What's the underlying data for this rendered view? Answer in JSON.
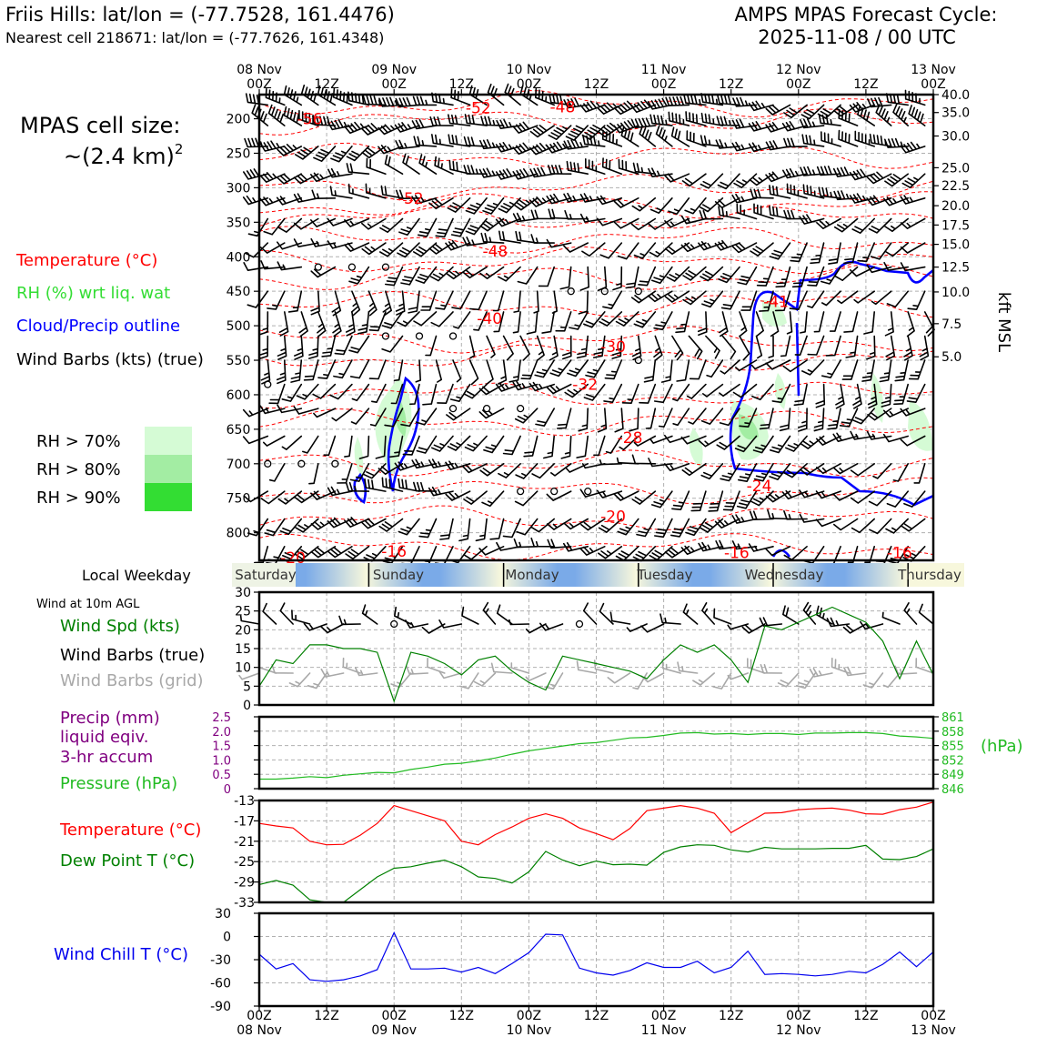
{
  "header": {
    "location_title": "Friis Hills: lat/lon = (-77.7528, 161.4476)",
    "nearest_cell": "Nearest cell 218671: lat/lon = (-77.7626, 161.4348)",
    "cycle_title": "AMPS MPAS Forecast Cycle:",
    "cycle_value": "2025-11-08 / 00 UTC"
  },
  "sidebar": {
    "cell_size_title": "MPAS cell size:",
    "cell_size_value": "~(2.4 km)",
    "cell_size_exp": "2",
    "legend": {
      "temperature": "Temperature (°C)",
      "rh": "RH (%) wrt liq. wat",
      "cloud": "Cloud/Precip outline",
      "wind": "Wind Barbs (kts) (true)"
    },
    "rh_levels": [
      {
        "label": "RH > 70%",
        "color": "#d5fbd5"
      },
      {
        "label": "RH > 80%",
        "color": "#a3eda3"
      },
      {
        "label": "RH > 90%",
        "color": "#33dd33"
      }
    ],
    "weekday_label": "Local Weekday",
    "wind10_title": "Wind at 10m AGL",
    "wind_spd_label": "Wind Spd (kts)",
    "wind_barbs_true": "Wind Barbs (true)",
    "wind_barbs_grid": "Wind Barbs (grid)",
    "precip_label_1": "Precip (mm)",
    "precip_label_2": "liquid eqiv.",
    "precip_label_3": "3-hr accum",
    "pressure_label": "Pressure (hPa)",
    "temp_label": "Temperature (°C)",
    "dew_label": "Dew Point T (°C)",
    "windchill_label": "Wind Chill T (°C)"
  },
  "colors": {
    "temperature": "#ff0000",
    "rh_label": "#33dd33",
    "cloud": "#0000ff",
    "wind_speed": "#008000",
    "wind_grid": "#a8a8a8",
    "precip": "#800080",
    "pressure": "#22bb22",
    "dewpoint": "#008000",
    "windchill": "#0000ee"
  },
  "chart_data": [
    {
      "type": "cross-section",
      "name": "upper",
      "x": {
        "ticks": [
          0,
          12,
          24,
          36,
          48,
          60,
          72,
          84,
          96,
          108,
          120
        ],
        "top_labels": [
          [
            "08 Nov",
            "00Z"
          ],
          [
            "",
            "12Z"
          ],
          [
            "09 Nov",
            "00Z"
          ],
          [
            "",
            "12Z"
          ],
          [
            "10 Nov",
            "00Z"
          ],
          [
            "",
            "12Z"
          ],
          [
            "11 Nov",
            "00Z"
          ],
          [
            "",
            "12Z"
          ],
          [
            "12 Nov",
            "00Z"
          ],
          [
            "",
            "12Z"
          ],
          [
            "13 Nov",
            "00Z"
          ]
        ],
        "range": [
          0,
          120
        ]
      },
      "left_axis": {
        "ticks": [
          200,
          250,
          300,
          350,
          400,
          450,
          500,
          550,
          600,
          650,
          700,
          750,
          800
        ],
        "range": [
          165,
          840
        ]
      },
      "right_axis": {
        "label": "kft MSL",
        "ticks": [
          {
            "p": 165,
            "label": "40.0"
          },
          {
            "p": 191,
            "label": "35.0"
          },
          {
            "p": 225,
            "label": "30.0"
          },
          {
            "p": 271,
            "label": "25.0"
          },
          {
            "p": 297,
            "label": "22.5"
          },
          {
            "p": 326,
            "label": "20.0"
          },
          {
            "p": 354,
            "label": "17.5"
          },
          {
            "p": 382,
            "label": "15.0"
          },
          {
            "p": 415,
            "label": "12.5"
          },
          {
            "p": 451,
            "label": "10.0"
          },
          {
            "p": 497,
            "label": "7.5"
          },
          {
            "p": 545,
            "label": "5.0"
          }
        ]
      },
      "temperature_labels": [
        {
          "t": 9,
          "p": 200,
          "v": "-56"
        },
        {
          "t": 39,
          "p": 184,
          "v": "-52"
        },
        {
          "t": 54,
          "p": 183,
          "v": "-48"
        },
        {
          "t": 27,
          "p": 315,
          "v": "-52"
        },
        {
          "t": 42,
          "p": 392,
          "v": "-48"
        },
        {
          "t": 41,
          "p": 489,
          "v": "-40"
        },
        {
          "t": 63,
          "p": 530,
          "v": "-30"
        },
        {
          "t": 58,
          "p": 585,
          "v": "-32"
        },
        {
          "t": 66,
          "p": 662,
          "v": "-28"
        },
        {
          "t": 92,
          "p": 465,
          "v": "-41"
        },
        {
          "t": 89,
          "p": 732,
          "v": "-24"
        },
        {
          "t": 63,
          "p": 776,
          "v": "-20"
        },
        {
          "t": 6,
          "p": 836,
          "v": "-20"
        },
        {
          "t": 24,
          "p": 827,
          "v": "-16"
        },
        {
          "t": 85,
          "p": 829,
          "v": "-16"
        },
        {
          "t": 114,
          "p": 829,
          "v": "-16"
        }
      ]
    },
    {
      "type": "weekday-band",
      "days": [
        "Saturday",
        "Sunday",
        "Monday",
        "Tuesday",
        "Wednesday",
        "Thursday"
      ],
      "boundaries": [
        6.6,
        18.6,
        30.6,
        42.6,
        54.6,
        66.6,
        78.6,
        90.6,
        102.6,
        114.6
      ]
    },
    {
      "type": "line",
      "name": "wind10",
      "ylim": [
        0,
        30
      ],
      "yticks": [
        0,
        5,
        10,
        15,
        20,
        25,
        30
      ],
      "series": [
        {
          "key": "wind_speed",
          "x": [
            0,
            3,
            6,
            9,
            12,
            15,
            18,
            21,
            24,
            27,
            30,
            33,
            36,
            39,
            42,
            45,
            48,
            51,
            54,
            57,
            60,
            63,
            66,
            69,
            72,
            75,
            78,
            81,
            84,
            87,
            90,
            93,
            96,
            99,
            102,
            105,
            108,
            111,
            114,
            117,
            120
          ],
          "values": [
            5,
            12,
            11,
            16,
            16,
            15,
            15,
            14,
            1,
            14,
            13,
            11,
            8,
            12,
            13,
            9,
            6,
            4,
            13,
            12,
            11,
            10,
            9,
            7,
            12,
            16,
            14,
            16,
            12,
            6,
            21,
            20,
            22,
            24,
            26,
            24,
            22,
            17,
            7,
            17,
            8
          ]
        }
      ]
    },
    {
      "type": "line",
      "name": "precip-pressure",
      "ylim": [
        0,
        2.5
      ],
      "yticks": [
        0,
        0.5,
        1.0,
        1.5,
        2.0,
        2.5
      ],
      "right_axis": {
        "label": "(hPa)",
        "ticks": [
          846,
          849,
          852,
          855,
          858,
          861
        ],
        "range": [
          846,
          861
        ]
      },
      "series": [
        {
          "key": "pressure",
          "x": [
            0,
            3,
            6,
            9,
            12,
            15,
            18,
            21,
            24,
            27,
            30,
            33,
            36,
            39,
            42,
            45,
            48,
            51,
            54,
            57,
            60,
            63,
            66,
            69,
            72,
            75,
            78,
            81,
            84,
            87,
            90,
            93,
            96,
            99,
            102,
            105,
            108,
            111,
            114,
            117,
            120
          ],
          "values": [
            848.0,
            848.0,
            848.2,
            848.5,
            848.3,
            848.8,
            849.1,
            849.4,
            849.3,
            850.0,
            850.5,
            851.1,
            851.3,
            851.8,
            852.4,
            853.2,
            853.9,
            854.4,
            854.9,
            855.4,
            855.6,
            856.1,
            856.6,
            856.7,
            857.1,
            857.6,
            857.7,
            857.4,
            857.5,
            857.3,
            857.5,
            857.5,
            857.3,
            857.6,
            857.6,
            857.7,
            857.7,
            857.5,
            857.0,
            856.8,
            856.5
          ]
        }
      ]
    },
    {
      "type": "line",
      "name": "temperature-dewpoint",
      "ylim": [
        -33,
        -13
      ],
      "yticks": [
        -33,
        -29,
        -25,
        -21,
        -17,
        -13
      ],
      "series": [
        {
          "key": "temperature",
          "x": [
            0,
            3,
            6,
            9,
            12,
            15,
            18,
            21,
            24,
            27,
            30,
            33,
            36,
            39,
            42,
            45,
            48,
            51,
            54,
            57,
            60,
            63,
            66,
            69,
            72,
            75,
            78,
            81,
            84,
            87,
            90,
            93,
            96,
            99,
            102,
            105,
            108,
            111,
            114,
            117,
            120
          ],
          "values": [
            -17.5,
            -18.0,
            -18.4,
            -21.0,
            -21.7,
            -21.6,
            -19.8,
            -17.5,
            -14.0,
            -15.0,
            -16.0,
            -17.0,
            -21.0,
            -21.7,
            -19.7,
            -18.2,
            -16.5,
            -15.6,
            -16.5,
            -18.4,
            -19.5,
            -20.7,
            -18.5,
            -15.0,
            -14.5,
            -14.0,
            -14.5,
            -15.5,
            -19.3,
            -17.4,
            -15.5,
            -15.4,
            -14.8,
            -14.6,
            -14.5,
            -14.9,
            -15.6,
            -15.7,
            -14.8,
            -14.3,
            -13.3
          ]
        },
        {
          "key": "dewpoint",
          "x": [
            0,
            3,
            6,
            9,
            12,
            15,
            18,
            21,
            24,
            27,
            30,
            33,
            36,
            39,
            42,
            45,
            48,
            51,
            54,
            57,
            60,
            63,
            66,
            69,
            72,
            75,
            78,
            81,
            84,
            87,
            90,
            93,
            96,
            99,
            102,
            105,
            108,
            111,
            114,
            117,
            120
          ],
          "values": [
            -29.5,
            -28.7,
            -29.6,
            -32.5,
            -33.0,
            -33.0,
            -30.5,
            -28.0,
            -26.3,
            -26.0,
            -25.3,
            -24.7,
            -26.0,
            -28.0,
            -28.3,
            -29.2,
            -27.0,
            -23.0,
            -24.7,
            -25.8,
            -24.9,
            -25.6,
            -25.5,
            -25.7,
            -23.2,
            -22.1,
            -21.7,
            -21.8,
            -22.7,
            -23.1,
            -22.2,
            -22.5,
            -22.5,
            -22.5,
            -22.4,
            -22.4,
            -21.8,
            -24.5,
            -24.6,
            -24.0,
            -22.5
          ]
        }
      ]
    },
    {
      "type": "line",
      "name": "windchill",
      "ylim": [
        -90,
        30
      ],
      "yticks": [
        -90,
        -60,
        -30,
        0,
        30
      ],
      "x_bottom_labels": [
        [
          "00Z",
          "08 Nov"
        ],
        [
          "12Z",
          ""
        ],
        [
          "00Z",
          "09 Nov"
        ],
        [
          "12Z",
          ""
        ],
        [
          "00Z",
          "10 Nov"
        ],
        [
          "12Z",
          ""
        ],
        [
          "00Z",
          "11 Nov"
        ],
        [
          "12Z",
          ""
        ],
        [
          "00Z",
          "12 Nov"
        ],
        [
          "12Z",
          ""
        ],
        [
          "00Z",
          "13 Nov"
        ]
      ],
      "series": [
        {
          "key": "windchill",
          "x": [
            0,
            3,
            6,
            9,
            12,
            15,
            18,
            21,
            24,
            27,
            30,
            33,
            36,
            39,
            42,
            45,
            48,
            51,
            54,
            57,
            60,
            63,
            66,
            69,
            72,
            75,
            78,
            81,
            84,
            87,
            90,
            93,
            96,
            99,
            102,
            105,
            108,
            111,
            114,
            117,
            120
          ],
          "values": [
            -23,
            -42,
            -35,
            -56,
            -58,
            -56,
            -51,
            -43,
            5,
            -42,
            -42,
            -41,
            -46,
            -40,
            -48,
            -35,
            -21,
            3,
            2,
            -41,
            -47,
            -50,
            -44,
            -34,
            -40,
            -40,
            -32,
            -47,
            -40,
            -19,
            -49,
            -48,
            -49,
            -51,
            -49,
            -45,
            -47,
            -36,
            -20,
            -39,
            -20
          ]
        }
      ]
    }
  ]
}
